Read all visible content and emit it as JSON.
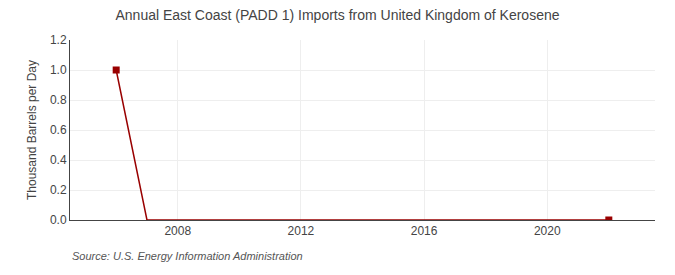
{
  "chart_data": {
    "type": "line",
    "title": "Annual East Coast (PADD 1) Imports from United Kingdom of Kerosene",
    "y_label": "Thousand Barrels per Day",
    "annotations": [
      "Source: U.S. Energy Information Administration"
    ],
    "series": [
      {
        "type": "line",
        "color": "#990000",
        "x": [
          2006,
          2007,
          2008,
          2009,
          2010,
          2011,
          2012,
          2013,
          2014,
          2015,
          2016,
          2017,
          2018,
          2019,
          2020,
          2021,
          2022
        ],
        "values": [
          1.0,
          0.0,
          0.0,
          0.0,
          0.0,
          0.0,
          0.0,
          0.0,
          0.0,
          0.0,
          0.0,
          0.0,
          0.0,
          0.0,
          0.0,
          0.0,
          0.0
        ]
      },
      {
        "type": "scatter",
        "color": "#990000",
        "marker": "square",
        "x": [
          2006,
          2022
        ],
        "values": [
          1.0,
          0.0
        ]
      }
    ],
    "xlim": [
      2004.5,
      2023.5
    ],
    "xticks": [
      2008,
      2012,
      2016,
      2020
    ],
    "ylim": [
      0.0,
      1.2
    ],
    "yticks": [
      {
        "value": 0.0,
        "label": "0.0"
      },
      0.2,
      0.4,
      0.6,
      0.8,
      {
        "value": 1.0,
        "label": "1.0"
      },
      1.2
    ],
    "grid": true
  }
}
